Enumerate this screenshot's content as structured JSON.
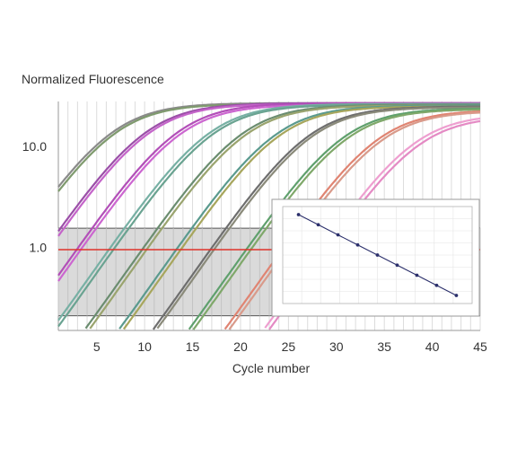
{
  "chart_data": {
    "type": "line",
    "ylabel": "Normalized Fluorescence",
    "xlabel": "Cycle number",
    "y_scale": "log",
    "ylim": [
      0.15,
      28
    ],
    "xlim": [
      1,
      45
    ],
    "x_ticks": [
      5,
      10,
      15,
      20,
      25,
      30,
      35,
      40,
      45
    ],
    "y_ticks": [
      1.0,
      10.0
    ],
    "y_tick_labels": [
      "1.0",
      "10.0"
    ],
    "grid": "vertical",
    "threshold": 0.95,
    "band": [
      0.21,
      1.55
    ],
    "series": [
      {
        "color": "#8a8a8a",
        "mid": 6.5,
        "max": 27
      },
      {
        "color": "#7f9a6e",
        "mid": 6.8,
        "max": 26.5
      },
      {
        "color": "#9b4fa8",
        "mid": 10.0,
        "max": 27
      },
      {
        "color": "#c464c9",
        "mid": 10.3,
        "max": 26.5
      },
      {
        "color": "#b24fb8",
        "mid": 13.3,
        "max": 27
      },
      {
        "color": "#cc66d0",
        "mid": 13.6,
        "max": 26
      },
      {
        "color": "#77b0a4",
        "mid": 16.6,
        "max": 26.5
      },
      {
        "color": "#6aa391",
        "mid": 17.0,
        "max": 26
      },
      {
        "color": "#6b8d70",
        "mid": 20.0,
        "max": 26
      },
      {
        "color": "#9aa46e",
        "mid": 20.4,
        "max": 25.5
      },
      {
        "color": "#5a9a8e",
        "mid": 23.5,
        "max": 25.5
      },
      {
        "color": "#a7a65c",
        "mid": 23.9,
        "max": 25
      },
      {
        "color": "#6e6e6e",
        "mid": 27.0,
        "max": 25
      },
      {
        "color": "#8a8a7a",
        "mid": 27.3,
        "max": 24.5
      },
      {
        "color": "#5fa06d",
        "mid": 30.6,
        "max": 24
      },
      {
        "color": "#7fa86a",
        "mid": 31.0,
        "max": 23.5
      },
      {
        "color": "#e08472",
        "mid": 34.2,
        "max": 23
      },
      {
        "color": "#d99a8a",
        "mid": 34.6,
        "max": 22.5
      },
      {
        "color": "#ee9fd0",
        "mid": 38.0,
        "max": 21
      },
      {
        "color": "#e48ac4",
        "mid": 38.4,
        "max": 20
      }
    ],
    "inset": {
      "type": "scatter",
      "x": [
        1,
        2,
        3,
        4,
        5,
        6,
        7,
        8,
        9
      ],
      "y": [
        9,
        8,
        7,
        6,
        5,
        4,
        3,
        2,
        1
      ]
    },
    "colors": {
      "threshold": "#e0322a",
      "band": "#d4d4d4",
      "inset_line": "#2b2f6b",
      "axis_text": "#333333"
    }
  }
}
